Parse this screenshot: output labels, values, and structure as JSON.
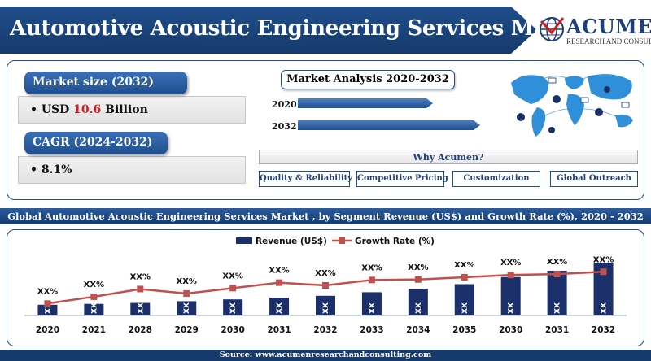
{
  "header": {
    "title": "Automotive Acoustic Engineering Services Market",
    "logo_name": "ACUMEN",
    "logo_sub": "RESEARCH AND CONSULTING"
  },
  "market_size": {
    "label": "Market size (2032)",
    "prefix": "USD ",
    "value": "10.6",
    "suffix": " Billion"
  },
  "cagr": {
    "label": "CAGR (2024-2032)",
    "value": "8.1%"
  },
  "market_analysis": {
    "title": "Market Analysis 2020-2032",
    "years": [
      {
        "label": "2020",
        "relative": 0.74
      },
      {
        "label": "2032",
        "relative": 1.0
      }
    ]
  },
  "why": {
    "title": "Why Acumen?",
    "items": [
      "Quality & Reliability",
      "Competitive Pricing",
      "Customization",
      "Global Outreach"
    ]
  },
  "chart_title": "Global Automotive Acoustic Engineering Services Market , by Segment Revenue (US$) and Growth Rate (%), 2020 - 2032",
  "source": "Source: www.acumenresearchandconsulting.com",
  "colors": {
    "navy": "#1f4e8c",
    "dark_navy": "#163a6b",
    "bar": "#1b2f6b",
    "line": "#c0504d",
    "highlight_red": "#d01f1f"
  },
  "chart_data": {
    "type": "bar",
    "categories": [
      "2020",
      "2021",
      "2028",
      "2029",
      "2030",
      "2031",
      "2032",
      "2033",
      "2034",
      "2035",
      "2030",
      "2031",
      "2032"
    ],
    "legend": [
      "Revenue (US$)",
      "Growth Rate (%)"
    ],
    "legend_position": "top-center",
    "series": [
      {
        "name": "Revenue (US$)",
        "kind": "bar",
        "values": [
          1.2,
          1.3,
          1.4,
          1.6,
          1.8,
          2.0,
          2.2,
          2.6,
          3.0,
          3.5,
          4.3,
          5.0,
          5.9
        ],
        "labels": [
          "XX",
          "XX",
          "XX",
          "XX",
          "XX",
          "XX",
          "XX",
          "XX",
          "XX",
          "XX",
          "XX",
          "XX",
          "XX"
        ]
      },
      {
        "name": "Growth Rate (%)",
        "kind": "line",
        "values": [
          3.0,
          4.5,
          6.2,
          5.2,
          6.4,
          7.6,
          7.0,
          8.2,
          8.3,
          8.8,
          9.3,
          9.5,
          10.0
        ],
        "labels": [
          "XX%",
          "XX%",
          "XX%",
          "XX%",
          "XX%",
          "XX%",
          "XX%",
          "XX%",
          "XX%",
          "XX%",
          "XX%",
          "XX%",
          "XX%"
        ]
      }
    ],
    "bar_ylim": [
      0,
      6
    ],
    "line_ylim": [
      0,
      14
    ],
    "grid": false
  }
}
